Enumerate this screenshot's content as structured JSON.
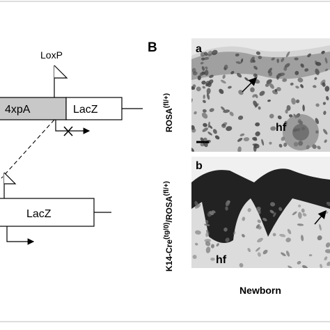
{
  "diagram": {
    "loxp_label": "LoxP",
    "upper_construct": {
      "polya": "4xpA",
      "reporter": "LacZ"
    },
    "lower_construct": {
      "reporter": "LacZ"
    }
  },
  "panel_label": "B",
  "images": [
    {
      "label": "a",
      "annotation": "hf",
      "genotype": {
        "base": "ROSA",
        "superscript": "(fl/+)"
      }
    },
    {
      "label": "b",
      "annotation": "hf",
      "genotype": {
        "base": "K14-Cre",
        "superscript1": "(tg/0)",
        "mid": "/ROSA",
        "superscript2": "(fl/+)"
      }
    }
  ],
  "caption": "Newborn"
}
